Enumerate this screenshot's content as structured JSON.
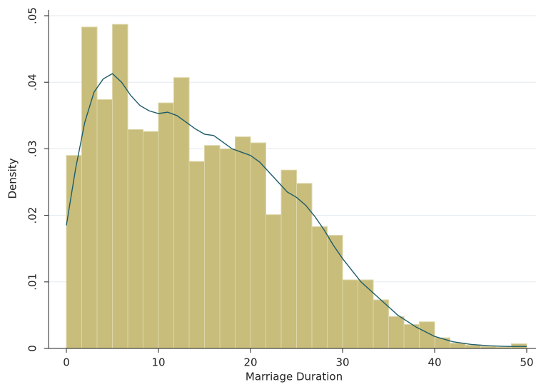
{
  "chart_data": {
    "type": "histogram",
    "x_label": "Marriage Duration",
    "y_label": "Density",
    "bins": [
      0,
      1.667,
      3.333,
      5,
      6.667,
      8.333,
      10,
      11.667,
      13.333,
      15,
      16.667,
      18.333,
      20,
      21.667,
      23.333,
      25,
      26.667,
      28.333,
      30,
      31.667,
      33.333,
      35,
      36.667,
      38.333,
      40,
      41.667,
      43.333,
      45,
      46.667,
      48.333,
      50
    ],
    "values": [
      0.029,
      0.0483,
      0.0374,
      0.0487,
      0.0329,
      0.0326,
      0.0369,
      0.0407,
      0.0281,
      0.0305,
      0.03,
      0.0318,
      0.0309,
      0.0201,
      0.0268,
      0.0248,
      0.0183,
      0.017,
      0.0103,
      0.0103,
      0.0073,
      0.0048,
      0.0036,
      0.004,
      0.0016,
      0.0008,
      0.0005,
      0.0003,
      0.0002,
      0.0007
    ],
    "color": "#c8bd7b",
    "density_line": {
      "color": "#1d5c6a",
      "x": [
        0,
        1,
        2,
        3,
        4,
        5,
        6,
        7,
        8,
        9,
        10,
        11,
        12,
        13,
        14,
        15,
        16,
        17,
        18,
        19,
        20,
        21,
        22,
        23,
        24,
        25,
        26,
        27,
        28,
        29,
        30,
        32,
        34,
        36,
        38,
        40,
        42,
        44,
        46,
        48,
        50
      ],
      "y": [
        0.0185,
        0.027,
        0.034,
        0.0385,
        0.0405,
        0.0413,
        0.04,
        0.038,
        0.0365,
        0.0357,
        0.0353,
        0.0355,
        0.035,
        0.034,
        0.033,
        0.0322,
        0.032,
        0.031,
        0.03,
        0.0295,
        0.029,
        0.028,
        0.0265,
        0.025,
        0.0235,
        0.0227,
        0.0215,
        0.0198,
        0.0178,
        0.0155,
        0.0135,
        0.01,
        0.0075,
        0.005,
        0.0032,
        0.0018,
        0.001,
        0.0006,
        0.0004,
        0.0003,
        0.0003
      ]
    },
    "xlim": [
      0,
      50
    ],
    "xticks": [
      0,
      10,
      20,
      30,
      40,
      50
    ],
    "ylim": [
      0,
      0.05
    ],
    "yticks": [
      0,
      {
        "value": 0.01,
        "label": ".01"
      },
      {
        "value": 0.02,
        "label": ".02"
      },
      {
        "value": 0.03,
        "label": ".03"
      },
      {
        "value": 0.04,
        "label": ".04"
      },
      {
        "value": 0.05,
        "label": ".05"
      }
    ],
    "grid": true
  }
}
